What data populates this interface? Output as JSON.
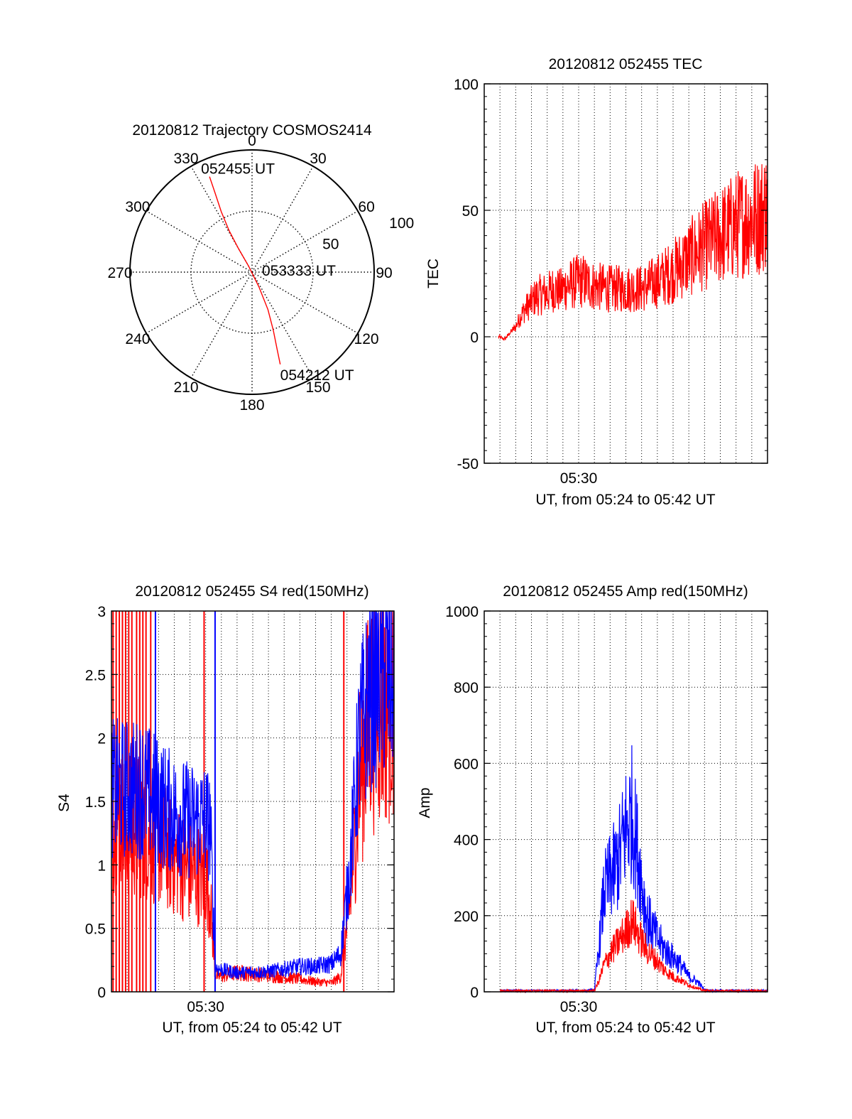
{
  "chart_data": [
    {
      "type": "polar",
      "title": "20120812 Trajectory COSMOS2414",
      "azimuth_labels": [
        "0",
        "30",
        "60",
        "90",
        "120",
        "150",
        "180",
        "210",
        "240",
        "270",
        "300",
        "330"
      ],
      "radius_labels": [
        "50",
        "100"
      ],
      "grid": true,
      "series": [
        {
          "color": "#ff0000",
          "points": [
            {
              "az": 336,
              "el": 13
            },
            {
              "az": 335,
              "el": 25
            },
            {
              "az": 333,
              "el": 40
            },
            {
              "az": 331,
              "el": 55
            },
            {
              "az": 330,
              "el": 70
            },
            {
              "az": 330,
              "el": 85
            },
            {
              "az": 155,
              "el": 78
            },
            {
              "az": 157,
              "el": 60
            },
            {
              "az": 160,
              "el": 44
            },
            {
              "az": 162,
              "el": 30
            },
            {
              "az": 163,
              "el": 19
            }
          ]
        }
      ],
      "annotations": [
        {
          "text": "052455 UT",
          "az": 336,
          "el": 13
        },
        {
          "text": "053333 UT",
          "az": 0,
          "el": 90
        },
        {
          "text": "054212 UT",
          "az": 163,
          "el": 19
        }
      ]
    },
    {
      "type": "line",
      "title": "20120812 052455 TEC",
      "xlabel": "UT, from 05:24 to 05:42 UT",
      "ylabel": "TEC",
      "xlim": [
        0,
        18
      ],
      "ylim": [
        -50,
        100
      ],
      "xticks": [
        {
          "t": 6,
          "label": "05:30"
        }
      ],
      "yticks": [
        -50,
        0,
        50,
        100
      ],
      "grid": true,
      "series": [
        {
          "color": "#ff0000",
          "noise": 0.5,
          "t": [
            0.9,
            1.3,
            1.7,
            2.0,
            2.3,
            2.6,
            2.9,
            3.3,
            3.7,
            4.0,
            4.4,
            4.8,
            5.2,
            5.6,
            6.0,
            6.3,
            6.6,
            7.0,
            8.0,
            9.0,
            10.0,
            11.0,
            12.0,
            13.0,
            14.0,
            15.0,
            16.0,
            16.5,
            17.0,
            17.5,
            18.0
          ],
          "v": [
            0,
            -1,
            2,
            4,
            8,
            11,
            13,
            16,
            17,
            17,
            19,
            18,
            20,
            21,
            22,
            22,
            21,
            20,
            19,
            19,
            19,
            22,
            26,
            31,
            36,
            40,
            44,
            46,
            47,
            48,
            51
          ]
        }
      ]
    },
    {
      "type": "line",
      "title": "20120812 052455 S4 red(150MHz)",
      "xlabel": "UT, from 05:24 to 05:42 UT",
      "ylabel": "S4",
      "xlim": [
        0,
        18
      ],
      "ylim": [
        0,
        3
      ],
      "xticks": [
        {
          "t": 6,
          "label": "05:30"
        }
      ],
      "yticks": [
        {
          "v": 0,
          "label": "0"
        },
        {
          "v": 0.5,
          "label": "0.5"
        },
        {
          "v": 1,
          "label": "1"
        },
        {
          "v": 1.5,
          "label": "1.5"
        },
        {
          "v": 2,
          "label": "2"
        },
        {
          "v": 2.5,
          "label": "2.5"
        },
        {
          "v": 3,
          "label": "3"
        }
      ],
      "grid": true,
      "series": [
        {
          "color": "#ff0000",
          "noise": 0.45,
          "spikes": [
            0.1,
            0.3,
            0.5,
            0.7,
            0.9,
            1.1,
            1.3,
            1.6,
            1.8,
            2.0,
            2.2,
            2.5,
            5.9,
            14.8
          ],
          "t": [
            0,
            1,
            2,
            3,
            4,
            5,
            6,
            6.3,
            6.6,
            6.8,
            8,
            10,
            12,
            13,
            14,
            14.6,
            15.2,
            15.8,
            16.5,
            17.2,
            18
          ],
          "v": [
            1.4,
            1.3,
            1.3,
            1.2,
            1.05,
            0.95,
            0.9,
            0.7,
            0.15,
            0.12,
            0.15,
            0.13,
            0.1,
            0.08,
            0.07,
            0.12,
            0.7,
            1.7,
            2.2,
            2.3,
            2.4
          ]
        },
        {
          "color": "#0000ff",
          "noise": 0.35,
          "spikes": [
            2.8,
            6.6
          ],
          "t": [
            0,
            1,
            2,
            3,
            4,
            5,
            6,
            6.3,
            6.6,
            6.8,
            8,
            10,
            12,
            13,
            14,
            14.6,
            15.2,
            15.8,
            16.5,
            17.2,
            18
          ],
          "v": [
            1.6,
            1.6,
            1.6,
            1.5,
            1.4,
            1.35,
            1.35,
            1.3,
            0.2,
            0.18,
            0.15,
            0.16,
            0.2,
            0.2,
            0.22,
            0.3,
            1.0,
            2.0,
            2.4,
            2.5,
            2.5
          ]
        }
      ]
    },
    {
      "type": "line",
      "title": "20120812 052455 Amp red(150MHz)",
      "xlabel": "UT, from 05:24 to 05:42 UT",
      "ylabel": "Amp",
      "xlim": [
        0,
        18
      ],
      "ylim": [
        0,
        1000
      ],
      "xticks": [
        {
          "t": 6,
          "label": "05:30"
        }
      ],
      "yticks": [
        0,
        200,
        400,
        600,
        800,
        1000
      ],
      "grid": true,
      "series": [
        {
          "color": "#0000ff",
          "noise": 0.4,
          "t": [
            1,
            6.5,
            7.0,
            7.3,
            7.6,
            8.0,
            8.5,
            9.0,
            9.4,
            9.8,
            10.3,
            11.0,
            11.5,
            12.0,
            12.5,
            13.0,
            13.6,
            14.0,
            14.5,
            18
          ],
          "v": [
            2,
            2,
            5,
            120,
            260,
            300,
            340,
            430,
            470,
            350,
            200,
            140,
            110,
            90,
            70,
            40,
            25,
            5,
            2,
            2
          ]
        },
        {
          "color": "#ff0000",
          "noise": 0.35,
          "t": [
            1,
            6.5,
            7.0,
            7.3,
            7.6,
            8.0,
            8.5,
            9.0,
            9.4,
            9.8,
            10.3,
            11.0,
            11.5,
            12.0,
            12.5,
            13.0,
            13.6,
            14.0,
            14.5,
            18
          ],
          "v": [
            2,
            2,
            3,
            30,
            70,
            100,
            130,
            160,
            190,
            150,
            110,
            80,
            55,
            40,
            30,
            18,
            8,
            3,
            2,
            2
          ]
        }
      ]
    }
  ]
}
